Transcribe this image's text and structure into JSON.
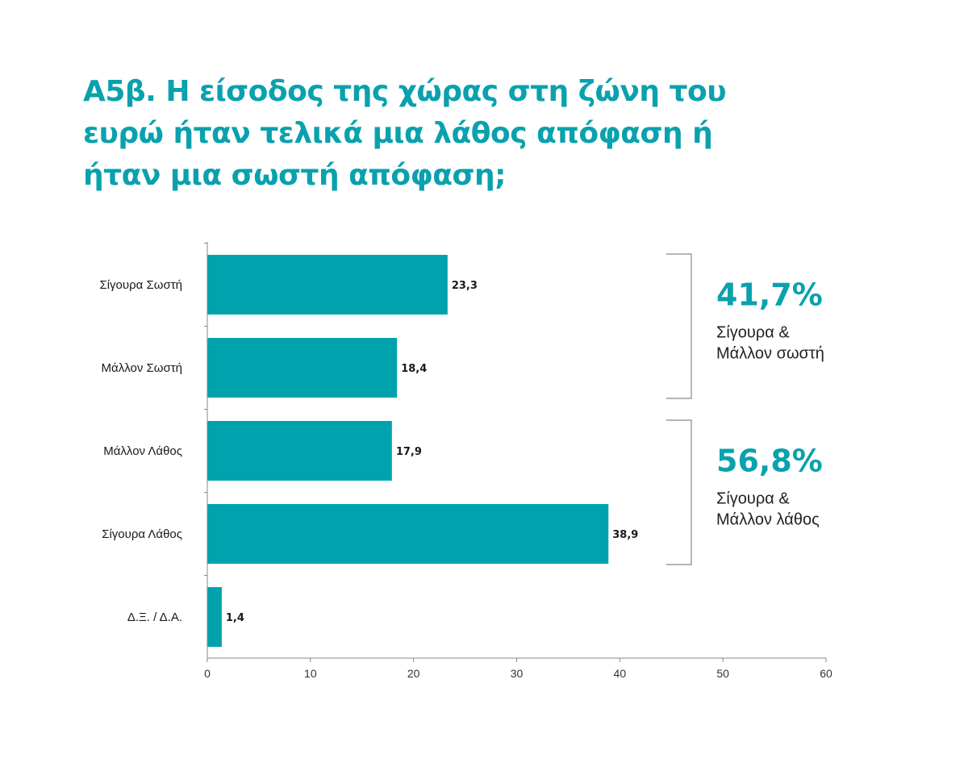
{
  "chart_data": {
    "type": "bar",
    "orientation": "horizontal",
    "title": "Α5β. Η είσοδος της χώρας στη ζώνη του ευρώ ήταν τελικά μια λάθος απόφαση ή ήταν μια σωστή απόφαση;",
    "categories": [
      "Σίγουρα Σωστή",
      "Μάλλον Σωστή",
      "Μάλλον Λάθος",
      "Σίγουρα Λάθος",
      "Δ.Ξ. / Δ.Α."
    ],
    "values": [
      23.3,
      18.4,
      17.9,
      38.9,
      1.4
    ],
    "value_labels": [
      "23,3",
      "18,4",
      "17,9",
      "38,9",
      "1,4"
    ],
    "xlim": [
      0,
      60
    ],
    "x_ticks": [
      0,
      10,
      20,
      30,
      40,
      50,
      60
    ],
    "xlabel": "",
    "ylabel": "",
    "grid": false,
    "legend": "none",
    "bar_color": "#00a3ad",
    "groups": [
      {
        "categories": [
          "Σίγουρα Σωστή",
          "Μάλλον Σωστή"
        ],
        "percent": "41,7%",
        "label_lines": [
          "Σίγουρα &",
          "Μάλλον σωστή"
        ]
      },
      {
        "categories": [
          "Μάλλον Λάθος",
          "Σίγουρα Λάθος"
        ],
        "percent": "56,8%",
        "label_lines": [
          "Σίγουρα &",
          "Μάλλον λάθος"
        ]
      }
    ]
  },
  "colors": {
    "title": "#0aa1ae",
    "bar": "#00a3ad",
    "group_percent": "#0aa1ae",
    "axis": "#8a8a8a",
    "bracket": "#8a8a8a"
  }
}
